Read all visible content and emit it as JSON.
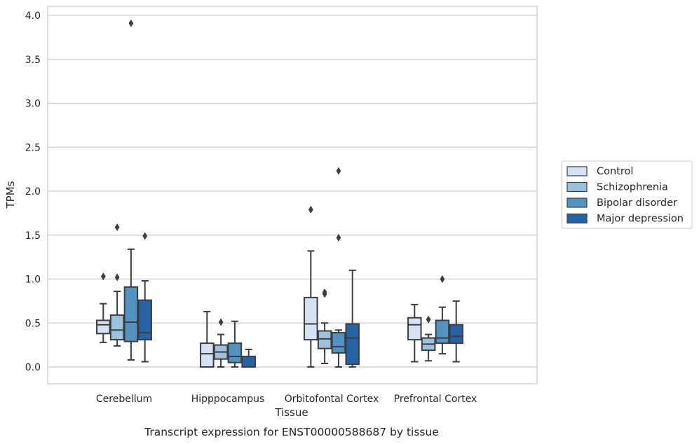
{
  "caption": "Transcript expression for ENST00000588687 by tissue",
  "chart_data": {
    "type": "box",
    "xlabel": "Tissue",
    "ylabel": "TPMs",
    "ylim": [
      -0.19,
      4.11
    ],
    "yticks": [
      0.0,
      0.5,
      1.0,
      1.5,
      2.0,
      2.5,
      3.0,
      3.5,
      4.0
    ],
    "ytick_labels": [
      "0.0",
      "0.5",
      "1.0",
      "1.5",
      "2.0",
      "2.5",
      "3.0",
      "3.5",
      "4.0"
    ],
    "grid": "horizontal",
    "legend_position": "right",
    "categories": [
      "Cerebellum",
      "Hipppocampus",
      "Orbitofontal Cortex",
      "Prefrontal Cortex"
    ],
    "series": [
      {
        "name": "Control",
        "color": "#d4e3f4",
        "boxes": [
          {
            "whislo": 0.28,
            "q1": 0.38,
            "med": 0.48,
            "q3": 0.53,
            "whishi": 0.72,
            "fliers": [
              1.03
            ]
          },
          {
            "whislo": 0.0,
            "q1": 0.0,
            "med": 0.15,
            "q3": 0.27,
            "whishi": 0.63,
            "fliers": []
          },
          {
            "whislo": 0.0,
            "q1": 0.31,
            "med": 0.49,
            "q3": 0.79,
            "whishi": 1.32,
            "fliers": [
              1.79
            ]
          },
          {
            "whislo": 0.06,
            "q1": 0.31,
            "med": 0.48,
            "q3": 0.56,
            "whishi": 0.71,
            "fliers": []
          }
        ]
      },
      {
        "name": "Schizophrenia",
        "color": "#9cc3de",
        "boxes": [
          {
            "whislo": 0.24,
            "q1": 0.31,
            "med": 0.42,
            "q3": 0.59,
            "whishi": 0.86,
            "fliers": [
              1.02,
              1.59
            ]
          },
          {
            "whislo": 0.0,
            "q1": 0.09,
            "med": 0.17,
            "q3": 0.25,
            "whishi": 0.37,
            "fliers": [
              0.51
            ]
          },
          {
            "whislo": 0.04,
            "q1": 0.21,
            "med": 0.32,
            "q3": 0.41,
            "whishi": 0.5,
            "fliers": [
              0.83,
              0.85
            ]
          },
          {
            "whislo": 0.07,
            "q1": 0.19,
            "med": 0.26,
            "q3": 0.33,
            "whishi": 0.37,
            "fliers": [
              0.54
            ]
          }
        ]
      },
      {
        "name": "Bipolar disorder",
        "color": "#5193c2",
        "boxes": [
          {
            "whislo": 0.08,
            "q1": 0.29,
            "med": 0.51,
            "q3": 0.91,
            "whishi": 1.34,
            "fliers": [
              3.91
            ]
          },
          {
            "whislo": 0.0,
            "q1": 0.05,
            "med": 0.12,
            "q3": 0.27,
            "whishi": 0.52,
            "fliers": []
          },
          {
            "whislo": 0.0,
            "q1": 0.16,
            "med": 0.23,
            "q3": 0.39,
            "whishi": 0.42,
            "fliers": [
              1.47,
              2.23
            ]
          },
          {
            "whislo": 0.15,
            "q1": 0.27,
            "med": 0.33,
            "q3": 0.53,
            "whishi": 0.68,
            "fliers": [
              1.0
            ]
          }
        ]
      },
      {
        "name": "Major depression",
        "color": "#2463a6",
        "boxes": [
          {
            "whislo": 0.06,
            "q1": 0.31,
            "med": 0.39,
            "q3": 0.76,
            "whishi": 0.98,
            "fliers": [
              1.49
            ]
          },
          {
            "whislo": 0.0,
            "q1": 0.0,
            "med": 0.0,
            "q3": 0.12,
            "whishi": 0.2,
            "fliers": []
          },
          {
            "whislo": 0.0,
            "q1": 0.03,
            "med": 0.33,
            "q3": 0.49,
            "whishi": 1.1,
            "fliers": []
          },
          {
            "whislo": 0.06,
            "q1": 0.27,
            "med": 0.35,
            "q3": 0.48,
            "whishi": 0.75,
            "fliers": []
          }
        ]
      }
    ]
  }
}
